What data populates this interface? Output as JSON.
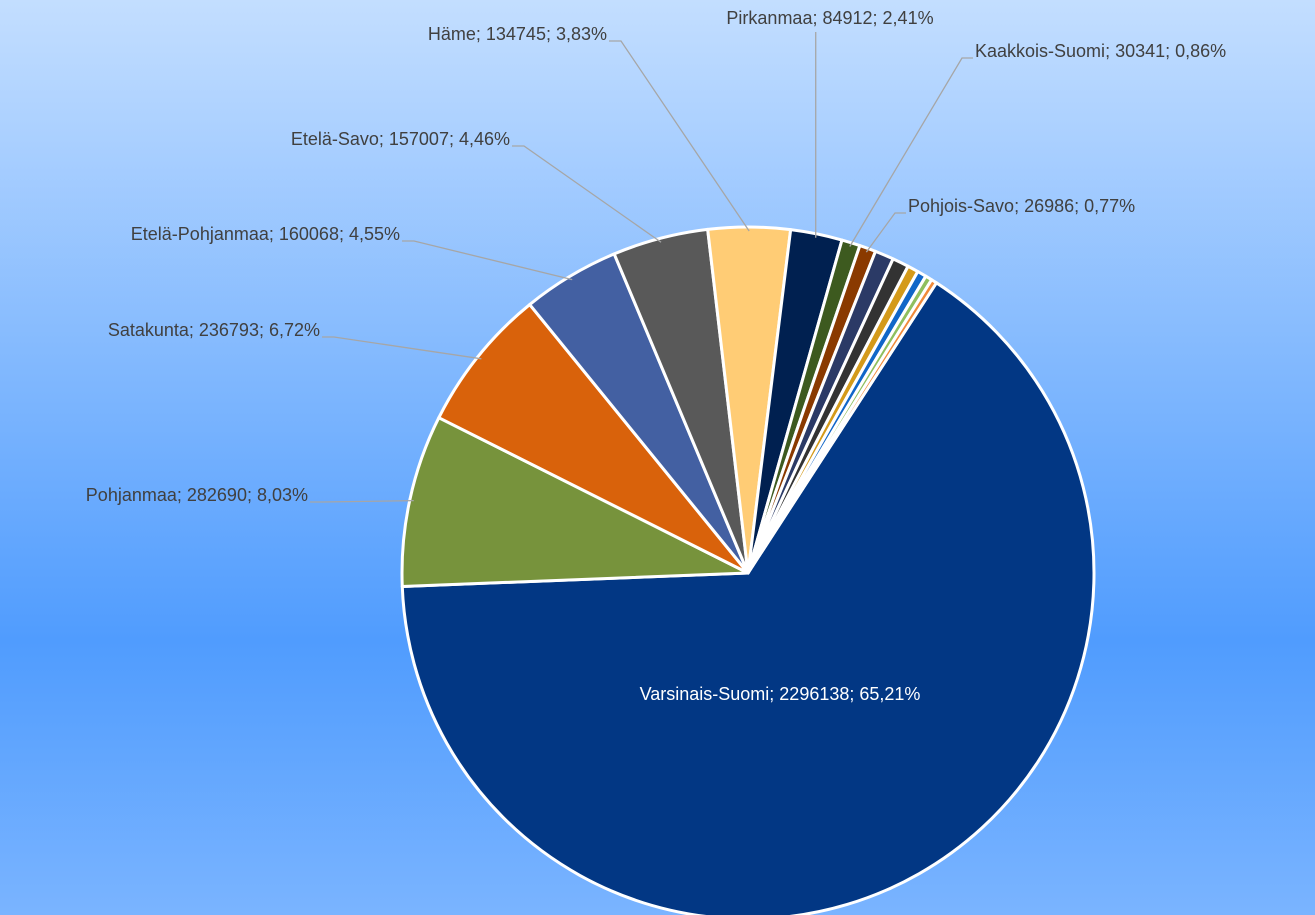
{
  "chart_data": {
    "type": "pie",
    "label_separator": "; ",
    "categories": [
      "Varsinais-Suomi",
      "Pohjanmaa",
      "Satakunta",
      "Etelä-Pohjanmaa",
      "Etelä-Savo",
      "Häme",
      "Pirkanmaa",
      "Kaakkois-Suomi",
      "Pohjois-Savo",
      null,
      null,
      null,
      null,
      null,
      null
    ],
    "values": [
      2296138,
      282690,
      236793,
      160068,
      157007,
      134745,
      84912,
      30341,
      26986,
      31000,
      27000,
      18000,
      15000,
      11000,
      9268
    ],
    "value_labels": [
      "2296138; 65,21%",
      "282690; 8,03%",
      "236793; 6,72%",
      "160068; 4,55%",
      "157007; 4,46%",
      "134745; 3,83%",
      "84912; 2,41%",
      "30341; 0,86%",
      "26986; 0,77%",
      null,
      null,
      null,
      null,
      null,
      null
    ],
    "colors": [
      "#023784",
      "#77933c",
      "#d9620b",
      "#4360a2",
      "#595959",
      "#ffcc75",
      "#002050",
      "#3d5a1f",
      "#8a3a00",
      "#2b3a66",
      "#333333",
      "#d49a1a",
      "#1066c8",
      "#8fbf5f",
      "#f08a3a"
    ]
  }
}
